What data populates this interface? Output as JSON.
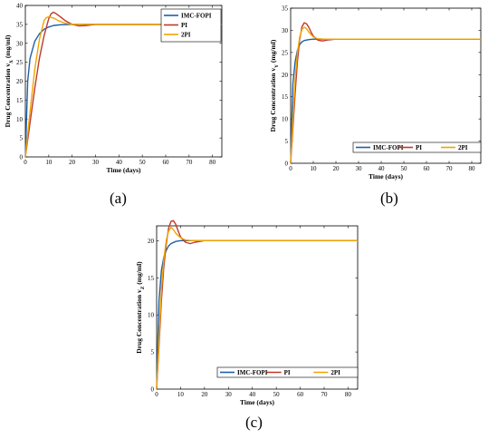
{
  "captions": [
    "(a)",
    "(b)",
    "(c)"
  ],
  "colors": {
    "imc": "#1f5fa8",
    "pi": "#c0392b",
    "twopi": "#f0a500"
  },
  "chart_data": [
    {
      "type": "line",
      "xlabel": "Time (days)",
      "ylabel": "Drug Concentration v",
      "ylabel_sub": "X",
      "ylabel_unit": " (mg/ml)",
      "xlim": [
        0,
        84
      ],
      "ylim": [
        0,
        40
      ],
      "xticks": [
        0,
        10,
        20,
        30,
        40,
        50,
        60,
        70,
        80
      ],
      "yticks": [
        0,
        5,
        10,
        15,
        20,
        25,
        30,
        35,
        40
      ],
      "legend": "top-right",
      "series": [
        {
          "name": "IMC-FOPI",
          "color": "imc",
          "x": [
            0,
            1,
            2,
            4,
            6,
            8,
            10,
            12,
            15,
            20,
            30,
            84
          ],
          "y": [
            0,
            20,
            26,
            30.5,
            32.5,
            33.7,
            34.3,
            34.7,
            34.9,
            35,
            35,
            35
          ]
        },
        {
          "name": "PI",
          "color": "pi",
          "x": [
            0,
            2,
            4,
            6,
            8,
            10,
            11,
            12,
            13,
            15,
            17,
            20,
            23,
            26,
            30,
            40,
            84
          ],
          "y": [
            0,
            9,
            18,
            26,
            32,
            36.5,
            37.8,
            38.2,
            37.9,
            37,
            36,
            35,
            34.6,
            34.7,
            35,
            35,
            35
          ]
        },
        {
          "name": "2PI",
          "color": "twopi",
          "x": [
            0,
            2,
            4,
            6,
            8,
            9,
            10,
            12,
            14,
            17,
            20,
            25,
            84
          ],
          "y": [
            0,
            12,
            23,
            31,
            36,
            36.8,
            37,
            36.7,
            36,
            35.3,
            35,
            35,
            35
          ]
        }
      ]
    },
    {
      "type": "line",
      "xlabel": "Time (days)",
      "ylabel": "Drug Concentration v",
      "ylabel_sub": "Y",
      "ylabel_unit": " (mg/ml)",
      "xlim": [
        0,
        84
      ],
      "ylim": [
        0,
        35
      ],
      "xticks": [
        0,
        10,
        20,
        30,
        40,
        50,
        60,
        70,
        80
      ],
      "yticks": [
        0,
        5,
        10,
        15,
        20,
        25,
        30,
        35
      ],
      "legend": "bottom",
      "series": [
        {
          "name": "IMC-FOPI",
          "color": "imc",
          "x": [
            0,
            1,
            2,
            3,
            4,
            5,
            6,
            8,
            10,
            15,
            84
          ],
          "y": [
            0,
            18,
            23,
            25.5,
            26.8,
            27.4,
            27.7,
            27.9,
            28,
            28,
            28
          ]
        },
        {
          "name": "PI",
          "color": "pi",
          "x": [
            0,
            1,
            2,
            3,
            4,
            5,
            6,
            7,
            8,
            9,
            10,
            12,
            14,
            16,
            20,
            84
          ],
          "y": [
            0,
            8,
            16,
            23,
            28,
            30.8,
            31.7,
            31.5,
            30.7,
            29.6,
            28.7,
            27.8,
            27.6,
            27.8,
            28,
            28
          ]
        },
        {
          "name": "2PI",
          "color": "twopi",
          "x": [
            0,
            1,
            2,
            3,
            4,
            5,
            6,
            7,
            8,
            10,
            12,
            15,
            84
          ],
          "y": [
            0,
            10,
            19,
            25,
            28.5,
            30.2,
            30.7,
            30.4,
            29.6,
            28.5,
            28.1,
            28,
            28
          ]
        }
      ]
    },
    {
      "type": "line",
      "xlabel": "Time (days)",
      "ylabel": "Drug Concentration v",
      "ylabel_sub": "Z",
      "ylabel_unit": " (mg/ml)",
      "xlim": [
        0,
        84
      ],
      "ylim": [
        0,
        22
      ],
      "xticks": [
        0,
        10,
        20,
        30,
        40,
        50,
        60,
        70,
        80
      ],
      "yticks": [
        0,
        5,
        10,
        15,
        20
      ],
      "legend": "bottom-right",
      "series": [
        {
          "name": "IMC-FOPI",
          "color": "imc",
          "x": [
            0,
            1,
            2,
            3,
            4,
            5,
            6,
            8,
            10,
            15,
            84
          ],
          "y": [
            0,
            12,
            16,
            17.8,
            18.7,
            19.3,
            19.6,
            19.9,
            20,
            20,
            20
          ]
        },
        {
          "name": "PI",
          "color": "pi",
          "x": [
            0,
            1,
            2,
            3,
            4,
            5,
            6,
            7,
            8,
            9,
            10,
            12,
            14,
            16,
            20,
            84
          ],
          "y": [
            0,
            6,
            12,
            16.5,
            19.5,
            21.7,
            22.6,
            22.7,
            22.2,
            21.3,
            20.5,
            19.8,
            19.6,
            19.8,
            20,
            20
          ]
        },
        {
          "name": "2PI",
          "color": "twopi",
          "x": [
            0,
            1,
            2,
            3,
            4,
            5,
            6,
            7,
            8,
            10,
            12,
            15,
            84
          ],
          "y": [
            0,
            7,
            13.5,
            17.5,
            20,
            21.3,
            21.8,
            21.5,
            21,
            20.4,
            20.1,
            20,
            20
          ]
        }
      ]
    }
  ]
}
